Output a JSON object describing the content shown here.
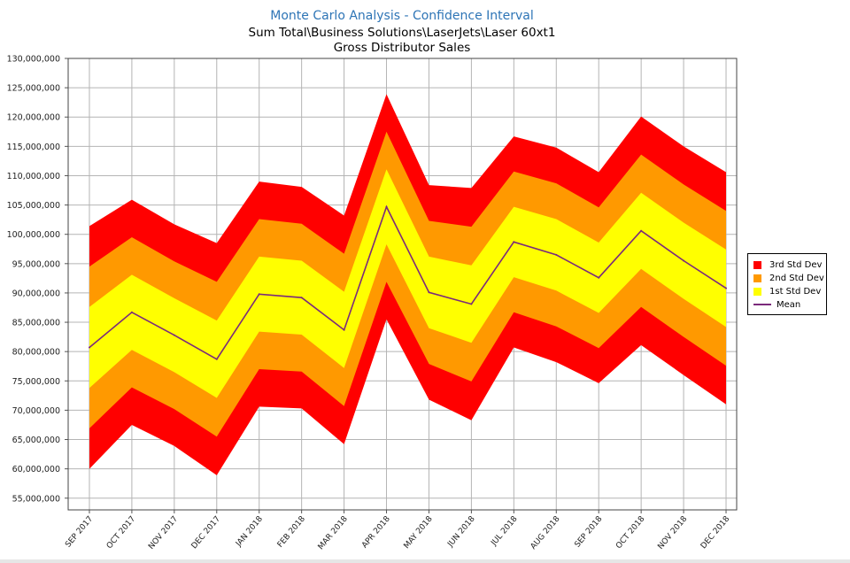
{
  "chart_data": {
    "type": "area",
    "title": "Monte Carlo Analysis - Confidence Interval",
    "subtitle": "Sum Total\\Business Solutions\\LaserJets\\Laser 60xt1",
    "subtitle2": "Gross Distributor Sales",
    "xlabel": "",
    "ylabel": "",
    "ylim": [
      53000000,
      130000000
    ],
    "yticks": [
      55000000,
      60000000,
      65000000,
      70000000,
      75000000,
      80000000,
      85000000,
      90000000,
      95000000,
      100000000,
      105000000,
      110000000,
      115000000,
      120000000,
      125000000,
      130000000
    ],
    "ytick_labels": [
      "55,000,000",
      "60,000,000",
      "65,000,000",
      "70,000,000",
      "75,000,000",
      "80,000,000",
      "85,000,000",
      "90,000,000",
      "95,000,000",
      "100,000,000",
      "105,000,000",
      "110,000,000",
      "115,000,000",
      "120,000,000",
      "125,000,000",
      "130,000,000"
    ],
    "categories": [
      "SEP 2017",
      "OCT 2017",
      "NOV 2017",
      "DEC 2017",
      "JAN 2018",
      "FEB 2018",
      "MAR 2018",
      "APR 2018",
      "MAY 2018",
      "JUN 2018",
      "JUL 2018",
      "AUG 2018",
      "SEP 2018",
      "OCT 2018",
      "NOV 2018",
      "DEC 2018"
    ],
    "mean": [
      80700000,
      86700000,
      82800000,
      78700000,
      89800000,
      89200000,
      83700000,
      104700000,
      90100000,
      88100000,
      98700000,
      96500000,
      92600000,
      100600000,
      95500000,
      90800000
    ],
    "std": [
      6900000,
      6400000,
      6300000,
      6600000,
      6400000,
      6300000,
      6500000,
      6400000,
      6100000,
      6600000,
      6000000,
      6100000,
      6000000,
      6500000,
      6500000,
      6600000
    ],
    "series": [
      {
        "name": "3rd Std Dev",
        "color": "#ff0000",
        "sigma": 3
      },
      {
        "name": "2nd Std Dev",
        "color": "#ff9900",
        "sigma": 2
      },
      {
        "name": "1st Std Dev",
        "color": "#ffff00",
        "sigma": 1
      },
      {
        "name": "Mean",
        "color": "#7b2a7b",
        "sigma": 0
      }
    ],
    "grid": true,
    "legend_position": "right"
  }
}
